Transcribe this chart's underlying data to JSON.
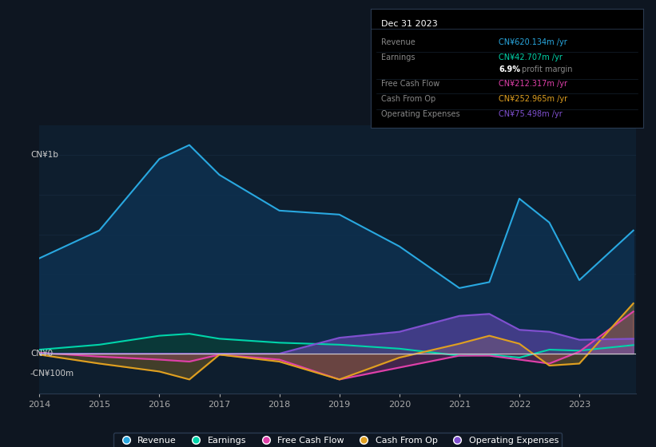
{
  "background_color": "#0e1621",
  "plot_bg_color": "#0e1e2e",
  "years": [
    2014,
    2015,
    2016,
    2016.5,
    2017,
    2018,
    2019,
    2020,
    2021,
    2021.5,
    2022,
    2022.5,
    2023,
    2023.9
  ],
  "revenue": [
    480,
    620,
    980,
    1050,
    900,
    720,
    700,
    540,
    330,
    360,
    780,
    660,
    370,
    620
  ],
  "earnings": [
    20,
    45,
    90,
    100,
    75,
    55,
    45,
    25,
    -10,
    -5,
    -20,
    20,
    15,
    43
  ],
  "free_cash_flow": [
    5,
    -15,
    -30,
    -40,
    -5,
    -30,
    -130,
    -70,
    -10,
    -10,
    -30,
    -50,
    10,
    212
  ],
  "cash_from_op": [
    -5,
    -50,
    -90,
    -130,
    -5,
    -40,
    -130,
    -20,
    50,
    90,
    50,
    -60,
    -50,
    253
  ],
  "operating_expenses": [
    0,
    0,
    0,
    0,
    0,
    0,
    80,
    110,
    190,
    200,
    120,
    110,
    70,
    75
  ],
  "revenue_color": "#29a8e0",
  "earnings_color": "#00d4aa",
  "free_cash_flow_color": "#e040aa",
  "cash_from_op_color": "#e0a020",
  "operating_expenses_color": "#8050d0",
  "revenue_fill": "#0d3050",
  "earnings_fill": "#0a3a35",
  "ylim_top": 1150,
  "ylim_bottom": -200,
  "y_ticks": [
    0,
    200,
    400,
    600,
    800,
    1000
  ],
  "grid_color": "#1a2e45",
  "zero_line_color": "#cccccc",
  "info_title": "Dec 31 2023",
  "info_rows": [
    {
      "label": "Revenue",
      "value": "CN¥620.134m /yr",
      "color": "#29a8e0"
    },
    {
      "label": "Earnings",
      "value": "CN¥42.707m /yr",
      "color": "#00d4aa"
    },
    {
      "label": "",
      "value": "6.9% profit margin",
      "color": "#aaaaaa"
    },
    {
      "label": "Free Cash Flow",
      "value": "CN¥212.317m /yr",
      "color": "#e040aa"
    },
    {
      "label": "Cash From Op",
      "value": "CN¥252.965m /yr",
      "color": "#e0a020"
    },
    {
      "label": "Operating Expenses",
      "value": "CN¥75.498m /yr",
      "color": "#8050d0"
    }
  ],
  "legend_items": [
    {
      "label": "Revenue",
      "color": "#29a8e0"
    },
    {
      "label": "Earnings",
      "color": "#00d4aa"
    },
    {
      "label": "Free Cash Flow",
      "color": "#e040aa"
    },
    {
      "label": "Cash From Op",
      "color": "#e0a020"
    },
    {
      "label": "Operating Expenses",
      "color": "#8050d0"
    }
  ],
  "x_ticks": [
    2014,
    2015,
    2016,
    2017,
    2018,
    2019,
    2020,
    2021,
    2022,
    2023
  ]
}
